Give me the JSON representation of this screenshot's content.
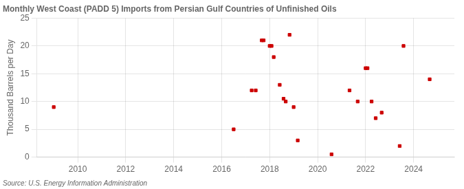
{
  "chart_data": {
    "type": "scatter",
    "title": "Monthly West Coast (PADD 5) Imports from Persian Gulf Countries of Unfinished Oils",
    "y_label": "Thousand Barrels per Day",
    "source": "Source: U.S. Energy Information Administration",
    "color": "#cc0000",
    "marker": "square",
    "grid": true,
    "xlim": [
      2008.3,
      2025.7
    ],
    "ylim": [
      0,
      25
    ],
    "xticks": [
      2010,
      2012,
      2014,
      2016,
      2018,
      2020,
      2022,
      2024
    ],
    "yticks": [
      0,
      5,
      10,
      15,
      20,
      25
    ],
    "x": [
      2009.0,
      2016.5,
      2017.25,
      2017.42,
      2017.67,
      2017.75,
      2018.0,
      2018.08,
      2018.17,
      2018.42,
      2018.58,
      2018.67,
      2018.83,
      2019.0,
      2019.17,
      2020.58,
      2021.33,
      2021.67,
      2022.0,
      2022.08,
      2022.25,
      2022.42,
      2022.67,
      2023.42,
      2023.58,
      2024.67
    ],
    "values": [
      9.0,
      5.0,
      12.0,
      12.0,
      21.0,
      21.0,
      20.0,
      20.0,
      18.0,
      13.0,
      10.5,
      10.0,
      22.0,
      9.0,
      3.0,
      0.5,
      12.0,
      10.0,
      16.0,
      16.0,
      10.0,
      7.0,
      8.0,
      2.0,
      20.0,
      14.0
    ]
  }
}
